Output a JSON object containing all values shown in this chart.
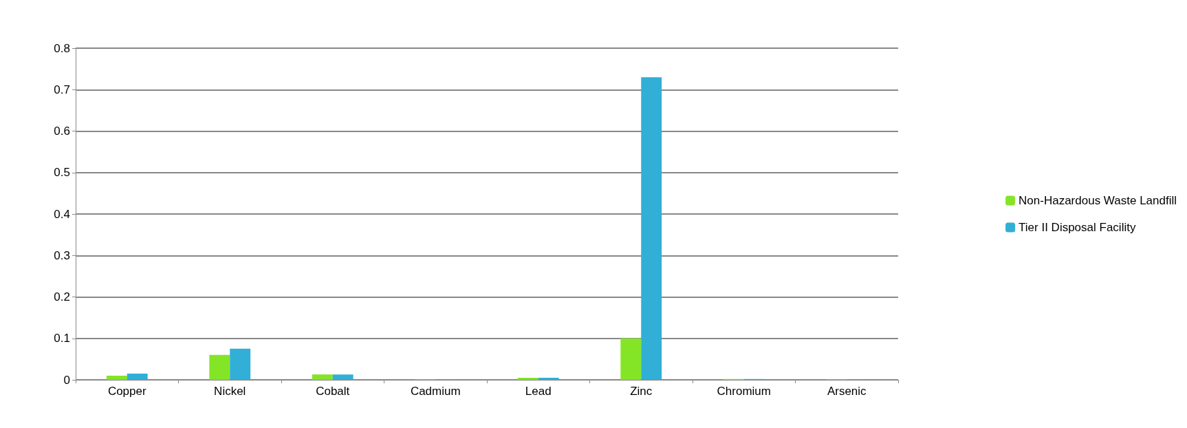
{
  "chart_data": {
    "type": "bar",
    "categories": [
      "Copper",
      "Nickel",
      "Cobalt",
      "Cadmium",
      "Lead",
      "Zinc",
      "Chromium",
      "Arsenic"
    ],
    "series": [
      {
        "name": "Non-Hazardous Waste Landfill",
        "color": "#84e526",
        "values": [
          0.01,
          0.06,
          0.013,
          0.001,
          0.005,
          0.1,
          0.002,
          0.001
        ]
      },
      {
        "name": "Tier II Disposal Facility",
        "color": "#31afd6",
        "values": [
          0.015,
          0.075,
          0.013,
          0.001,
          0.005,
          0.73,
          0.002,
          0.001
        ]
      }
    ],
    "ylim": [
      0,
      0.8
    ],
    "yticks": [
      0,
      0.1,
      0.2,
      0.3,
      0.4,
      0.5,
      0.6,
      0.7,
      0.8
    ],
    "grid": "y",
    "legend": "right"
  }
}
